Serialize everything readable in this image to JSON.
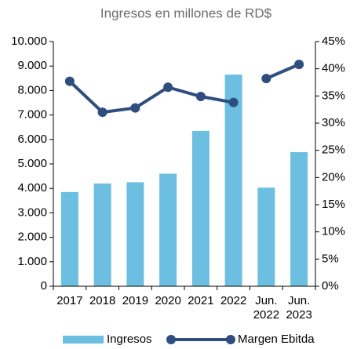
{
  "chart_data": {
    "type": "bar_line",
    "title": "Ingresos en millones de RD$",
    "categories": [
      "2017",
      "2018",
      "2019",
      "2020",
      "2021",
      "2022",
      "Jun. 2022",
      "Jun. 2023"
    ],
    "series": [
      {
        "name": "Ingresos",
        "type": "bar",
        "color": "#6cbfe0",
        "values": [
          3850,
          4200,
          4250,
          4600,
          6350,
          8650,
          4030,
          5480
        ]
      },
      {
        "name": "Margen Ebitda",
        "type": "line",
        "axis": "y2",
        "color": "#2d4e7e",
        "values": [
          37.7,
          32.0,
          32.8,
          36.6,
          34.9,
          33.8,
          38.2,
          40.8
        ],
        "gap_before": 6
      }
    ],
    "ylim": [
      0,
      10000
    ],
    "yticks": [
      0,
      {
        "value": 1000,
        "label": "1.000"
      },
      {
        "value": 2000,
        "label": "2.000"
      },
      {
        "value": 3000,
        "label": "3.000"
      },
      {
        "value": 4000,
        "label": "4.000"
      },
      {
        "value": 5000,
        "label": "5.000"
      },
      {
        "value": 6000,
        "label": "6.000"
      },
      {
        "value": 7000,
        "label": "7.000"
      },
      {
        "value": 8000,
        "label": "8.000"
      },
      {
        "value": 9000,
        "label": "9.000"
      },
      {
        "value": 10000,
        "label": "10.000"
      }
    ],
    "y2lim": [
      0,
      45
    ],
    "y2ticks": [
      {
        "value": 0,
        "label": "0%"
      },
      {
        "value": 5,
        "label": "5%"
      },
      {
        "value": 10,
        "label": "10%"
      },
      {
        "value": 15,
        "label": "15%"
      },
      {
        "value": 20,
        "label": "20%"
      },
      {
        "value": 25,
        "label": "25%"
      },
      {
        "value": 30,
        "label": "30%"
      },
      {
        "value": 35,
        "label": "35%"
      },
      {
        "value": 40,
        "label": "40%"
      },
      {
        "value": 45,
        "label": "45%"
      }
    ],
    "grid": false,
    "legend": "bottom"
  }
}
